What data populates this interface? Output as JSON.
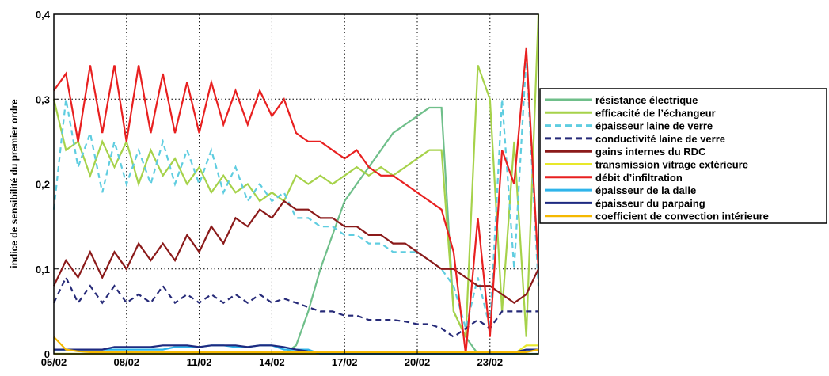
{
  "chart_data": {
    "type": "line",
    "y_label": "indice de sensibilité du premier ordre",
    "x": [
      0,
      0.5,
      1,
      1.5,
      2,
      2.5,
      3,
      3.5,
      4,
      4.5,
      5,
      5.5,
      6,
      6.5,
      7,
      7.5,
      8,
      8.5,
      9,
      9.5,
      10,
      10.5,
      11,
      11.5,
      12,
      12.5,
      13,
      13.5,
      14,
      14.5,
      15,
      15.5,
      16,
      16.5,
      17,
      17.5,
      18,
      18.5,
      19,
      19.5,
      20
    ],
    "xlim": [
      0,
      20
    ],
    "xticks": [
      {
        "value": 0,
        "label": "05/02"
      },
      {
        "value": 3,
        "label": "08/02"
      },
      {
        "value": 6,
        "label": "11/02"
      },
      {
        "value": 9,
        "label": "14/02"
      },
      {
        "value": 12,
        "label": "17/02"
      },
      {
        "value": 15,
        "label": "20/02"
      },
      {
        "value": 18,
        "label": "23/02"
      }
    ],
    "ylim": [
      0,
      0.4
    ],
    "yticks": [
      0,
      {
        "value": 0.1,
        "label": "0,1"
      },
      {
        "value": 0.2,
        "label": "0,2"
      },
      {
        "value": 0.3,
        "label": "0,3"
      },
      {
        "value": 0.4,
        "label": "0,4"
      }
    ],
    "grid": true,
    "legend": "right",
    "series": [
      {
        "name": "résistance électrique",
        "color": "#6fbf8a",
        "linestyle": "solid",
        "values": [
          0,
          0,
          0,
          0,
          0,
          0,
          0,
          0,
          0,
          0,
          0,
          0,
          0,
          0,
          0,
          0,
          0,
          0,
          0,
          0,
          0.01,
          0.05,
          0.1,
          0.14,
          0.18,
          0.2,
          0.22,
          0.24,
          0.26,
          0.27,
          0.28,
          0.29,
          0.29,
          0.05,
          0.02,
          0,
          0,
          0,
          0,
          0,
          0
        ]
      },
      {
        "name": "efficacité de l’échangeur",
        "color": "#a6d24a",
        "linestyle": "solid",
        "values": [
          0.3,
          0.24,
          0.25,
          0.21,
          0.25,
          0.22,
          0.25,
          0.2,
          0.24,
          0.21,
          0.23,
          0.2,
          0.22,
          0.19,
          0.21,
          0.19,
          0.2,
          0.18,
          0.19,
          0.18,
          0.21,
          0.2,
          0.21,
          0.2,
          0.21,
          0.22,
          0.21,
          0.22,
          0.21,
          0.22,
          0.23,
          0.24,
          0.24,
          0.05,
          0.02,
          0.34,
          0.3,
          0.05,
          0.25,
          0.02,
          0.4
        ]
      },
      {
        "name": "épaisseur laine de verre",
        "color": "#5fcde0",
        "linestyle": "dashed",
        "values": [
          0.17,
          0.3,
          0.22,
          0.26,
          0.19,
          0.25,
          0.2,
          0.24,
          0.2,
          0.25,
          0.2,
          0.24,
          0.2,
          0.24,
          0.19,
          0.22,
          0.18,
          0.2,
          0.18,
          0.19,
          0.16,
          0.16,
          0.15,
          0.15,
          0.14,
          0.14,
          0.13,
          0.13,
          0.12,
          0.12,
          0.12,
          0.11,
          0.1,
          0.08,
          0.03,
          0.09,
          0.03,
          0.3,
          0.1,
          0.35,
          0.08
        ]
      },
      {
        "name": "conductivité laine de verre",
        "color": "#262a78",
        "linestyle": "dashed",
        "values": [
          0.06,
          0.09,
          0.06,
          0.08,
          0.06,
          0.08,
          0.06,
          0.07,
          0.06,
          0.08,
          0.06,
          0.07,
          0.06,
          0.07,
          0.06,
          0.07,
          0.06,
          0.07,
          0.06,
          0.065,
          0.06,
          0.055,
          0.05,
          0.05,
          0.045,
          0.045,
          0.04,
          0.04,
          0.04,
          0.038,
          0.035,
          0.035,
          0.03,
          0.02,
          0.03,
          0.04,
          0.03,
          0.05,
          0.05,
          0.05,
          0.05
        ]
      },
      {
        "name": "gains internes du RDC",
        "color": "#8b1a1a",
        "linestyle": "solid",
        "values": [
          0.08,
          0.11,
          0.09,
          0.12,
          0.09,
          0.12,
          0.1,
          0.13,
          0.11,
          0.13,
          0.11,
          0.14,
          0.12,
          0.15,
          0.13,
          0.16,
          0.15,
          0.17,
          0.16,
          0.18,
          0.17,
          0.17,
          0.16,
          0.16,
          0.15,
          0.15,
          0.14,
          0.14,
          0.13,
          0.13,
          0.12,
          0.11,
          0.1,
          0.1,
          0.09,
          0.08,
          0.08,
          0.07,
          0.06,
          0.07,
          0.1
        ]
      },
      {
        "name": "transmission vitrage extérieure",
        "color": "#e8e82a",
        "linestyle": "solid",
        "values": [
          0,
          0,
          0,
          0,
          0,
          0,
          0,
          0,
          0,
          0,
          0,
          0,
          0,
          0,
          0,
          0,
          0,
          0,
          0,
          0,
          0,
          0,
          0,
          0,
          0,
          0,
          0,
          0,
          0,
          0,
          0,
          0,
          0,
          0,
          0,
          0,
          0,
          0,
          0,
          0.01,
          0.01
        ]
      },
      {
        "name": "débit d’infiltration",
        "color": "#e82020",
        "linestyle": "solid",
        "values": [
          0.31,
          0.33,
          0.25,
          0.34,
          0.26,
          0.34,
          0.25,
          0.34,
          0.26,
          0.33,
          0.26,
          0.32,
          0.26,
          0.32,
          0.27,
          0.31,
          0.27,
          0.31,
          0.28,
          0.3,
          0.26,
          0.25,
          0.25,
          0.24,
          0.23,
          0.24,
          0.22,
          0.21,
          0.21,
          0.2,
          0.19,
          0.18,
          0.17,
          0.12,
          0,
          0.16,
          0.02,
          0.24,
          0.2,
          0.36,
          0.1
        ]
      },
      {
        "name": "épaisseur de la dalle",
        "color": "#2fb4ea",
        "linestyle": "solid",
        "values": [
          0.005,
          0.005,
          0.005,
          0.005,
          0.005,
          0.005,
          0.005,
          0.005,
          0.005,
          0.005,
          0.008,
          0.008,
          0.008,
          0.01,
          0.01,
          0.008,
          0.008,
          0.01,
          0.01,
          0.005,
          0.005,
          0.005,
          0,
          0,
          0,
          0,
          0,
          0,
          0,
          0,
          0,
          0,
          0,
          0,
          0,
          0,
          0,
          0,
          0,
          0.005,
          0.005
        ]
      },
      {
        "name": "épaisseur du parpaing",
        "color": "#1e2a80",
        "linestyle": "solid",
        "values": [
          0.005,
          0.005,
          0.005,
          0.005,
          0.005,
          0.008,
          0.008,
          0.008,
          0.008,
          0.01,
          0.01,
          0.01,
          0.008,
          0.01,
          0.01,
          0.01,
          0.008,
          0.01,
          0.01,
          0.008,
          0.005,
          0.003,
          0.002,
          0.002,
          0.002,
          0.002,
          0.002,
          0.002,
          0.002,
          0.002,
          0.002,
          0.002,
          0.002,
          0.002,
          0.002,
          0.002,
          0.002,
          0.002,
          0.002,
          0.005,
          0.005
        ]
      },
      {
        "name": "coefficient de convection intérieure",
        "color": "#f5b800",
        "linestyle": "solid",
        "values": [
          0.02,
          0.005,
          0.003,
          0.002,
          0.002,
          0.002,
          0.002,
          0.002,
          0.002,
          0.002,
          0.002,
          0.002,
          0.002,
          0.002,
          0.002,
          0.002,
          0.002,
          0.002,
          0.002,
          0.002,
          0.002,
          0.002,
          0.002,
          0.002,
          0.002,
          0.002,
          0.002,
          0.002,
          0.002,
          0.002,
          0.002,
          0.002,
          0.002,
          0.002,
          0.002,
          0.002,
          0.002,
          0.002,
          0.002,
          0.002,
          0.005
        ]
      }
    ]
  }
}
